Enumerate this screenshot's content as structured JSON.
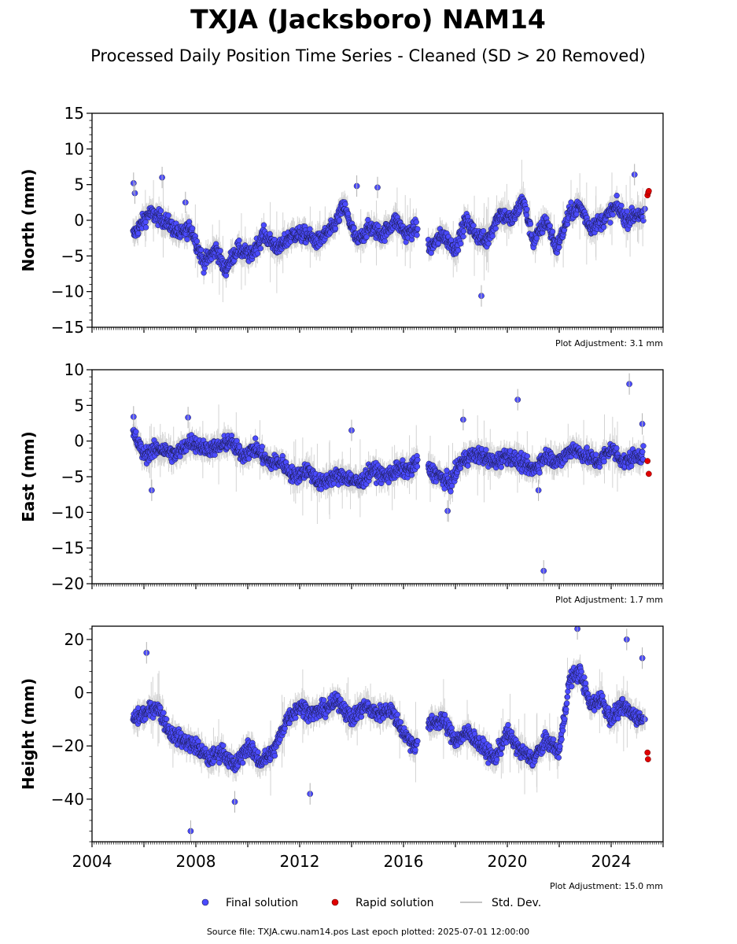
{
  "title": "TXJA (Jacksboro) NAM14",
  "subtitle": "Processed Daily Position Time Series - Cleaned (SD > 20 Removed)",
  "colors": {
    "final": "#4b4bff",
    "final_edge": "#1a1a4a",
    "rapid": "#e00000",
    "stddev": "#b0b0b0",
    "axis": "#000000"
  },
  "legend": {
    "final": "Final solution",
    "rapid": "Rapid solution",
    "stddev": "Std. Dev."
  },
  "footer": "Source file: TXJA.cwu.nam14.pos  Last epoch plotted: 2025-07-01 12:00:00",
  "chart_data": [
    {
      "type": "scatter",
      "ylabel": "North (mm)",
      "adjustment": "Plot Adjustment: 3.1 mm",
      "xlim": [
        2004,
        2026
      ],
      "ylim": [
        -15,
        15
      ],
      "yticks": [
        -15,
        -10,
        -5,
        0,
        5,
        10,
        15
      ],
      "grid": false,
      "final_series_trend": {
        "x": [
          2005.6,
          2006.2,
          2006.8,
          2007.4,
          2007.8,
          2008.3,
          2008.8,
          2009.1,
          2009.6,
          2010.1,
          2010.6,
          2011.2,
          2011.7,
          2012.2,
          2012.7,
          2013.3,
          2013.7,
          2014.2,
          2014.7,
          2015.2,
          2015.7,
          2016.1,
          2016.5,
          2017.0,
          2017.5,
          2018.0,
          2018.4,
          2018.8,
          2019.2,
          2019.7,
          2020.2,
          2020.6,
          2021.0,
          2021.5,
          2021.9,
          2022.4,
          2022.8,
          2023.2,
          2023.7,
          2024.2,
          2024.6,
          2025.0,
          2025.3
        ],
        "y": [
          -2,
          1,
          0,
          -2,
          -1,
          -6,
          -4,
          -7,
          -4,
          -5,
          -2,
          -4,
          -2,
          -2,
          -3,
          -1,
          2,
          -3,
          -1,
          -2,
          0,
          -2,
          -1,
          -4,
          -2,
          -4,
          0,
          -2,
          -3,
          1,
          0,
          3,
          -3,
          0,
          -4,
          1,
          2,
          -1,
          0,
          2,
          0,
          1,
          0
        ]
      },
      "final_outliers": {
        "x": [
          2005.6,
          2005.65,
          2006.7,
          2007.6,
          2014.2,
          2015.0,
          2019.0,
          2024.9,
          2025.3
        ],
        "y": [
          5.2,
          3.8,
          6.0,
          2.5,
          4.8,
          4.6,
          -10.6,
          6.4,
          1.6
        ]
      },
      "rapid": {
        "x": [
          2025.4,
          2025.43,
          2025.45
        ],
        "y": [
          3.5,
          3.9,
          4.1
        ]
      }
    },
    {
      "type": "scatter",
      "ylabel": "East (mm)",
      "adjustment": "Plot Adjustment: 1.7 mm",
      "xlim": [
        2004,
        2026
      ],
      "ylim": [
        -20,
        10
      ],
      "yticks": [
        -20,
        -15,
        -10,
        -5,
        0,
        5,
        10
      ],
      "grid": false,
      "final_series_trend": {
        "x": [
          2005.6,
          2006.0,
          2006.6,
          2007.2,
          2007.8,
          2008.3,
          2008.8,
          2009.3,
          2009.8,
          2010.3,
          2010.8,
          2011.3,
          2011.8,
          2012.3,
          2012.8,
          2013.3,
          2013.8,
          2014.3,
          2014.8,
          2015.3,
          2015.8,
          2016.3,
          2016.5,
          2017.0,
          2017.4,
          2017.8,
          2018.2,
          2018.6,
          2019.0,
          2019.5,
          2020.0,
          2020.5,
          2021.0,
          2021.5,
          2022.0,
          2022.5,
          2023.0,
          2023.5,
          2024.0,
          2024.5,
          2025.0
        ],
        "y": [
          1,
          -2,
          -1,
          -2,
          0,
          -1,
          -1,
          0,
          -2,
          -1,
          -3,
          -3,
          -5,
          -4,
          -6,
          -5,
          -5,
          -6,
          -4,
          -5,
          -4,
          -4,
          -3,
          -4,
          -5,
          -6,
          -3,
          -2,
          -2,
          -3,
          -2,
          -3,
          -4,
          -2,
          -3,
          -1,
          -2,
          -3,
          -1,
          -3,
          -2
        ]
      },
      "final_outliers": {
        "x": [
          2005.6,
          2006.3,
          2007.7,
          2014.0,
          2017.7,
          2018.3,
          2020.4,
          2021.2,
          2021.4,
          2024.7,
          2025.2
        ],
        "y": [
          3.4,
          -6.9,
          3.3,
          1.5,
          -9.8,
          3.0,
          5.8,
          -6.9,
          -18.2,
          8.0,
          2.4
        ]
      },
      "rapid": {
        "x": [
          2025.4,
          2025.45
        ],
        "y": [
          -2.8,
          -4.6
        ]
      }
    },
    {
      "type": "scatter",
      "ylabel": "Height (mm)",
      "adjustment": "Plot Adjustment: 15.0 mm",
      "xlim": [
        2004,
        2026
      ],
      "ylim": [
        -56,
        25
      ],
      "yticks": [
        -40,
        -20,
        0,
        20
      ],
      "xticks": [
        2004,
        2008,
        2012,
        2016,
        2020,
        2024
      ],
      "grid": false,
      "final_series_trend": {
        "x": [
          2005.6,
          2006.0,
          2006.5,
          2007.0,
          2007.5,
          2008.0,
          2008.5,
          2009.0,
          2009.5,
          2010.0,
          2010.5,
          2011.0,
          2011.5,
          2012.0,
          2012.5,
          2013.0,
          2013.5,
          2014.0,
          2014.5,
          2015.0,
          2015.5,
          2016.0,
          2016.4,
          2017.0,
          2017.5,
          2018.0,
          2018.5,
          2019.0,
          2019.5,
          2020.0,
          2020.5,
          2021.0,
          2021.5,
          2022.0,
          2022.4,
          2022.8,
          2023.2,
          2023.6,
          2024.0,
          2024.4,
          2024.8,
          2025.2
        ],
        "y": [
          -10,
          -8,
          -5,
          -15,
          -18,
          -20,
          -25,
          -22,
          -28,
          -20,
          -26,
          -22,
          -10,
          -5,
          -8,
          -6,
          -3,
          -10,
          -5,
          -8,
          -6,
          -15,
          -20,
          -12,
          -10,
          -18,
          -15,
          -20,
          -25,
          -15,
          -22,
          -25,
          -18,
          -22,
          5,
          8,
          -5,
          -2,
          -10,
          -5,
          -8,
          -10
        ]
      },
      "final_outliers": {
        "x": [
          2007.8,
          2012.4,
          2022.7,
          2024.6,
          2025.2,
          2025.3,
          2009.5,
          2006.1
        ],
        "y": [
          -52,
          -38,
          24,
          20,
          13,
          -10,
          -41,
          15
        ]
      },
      "rapid": {
        "x": [
          2025.4,
          2025.42
        ],
        "y": [
          -22.5,
          -25.0
        ]
      }
    }
  ]
}
